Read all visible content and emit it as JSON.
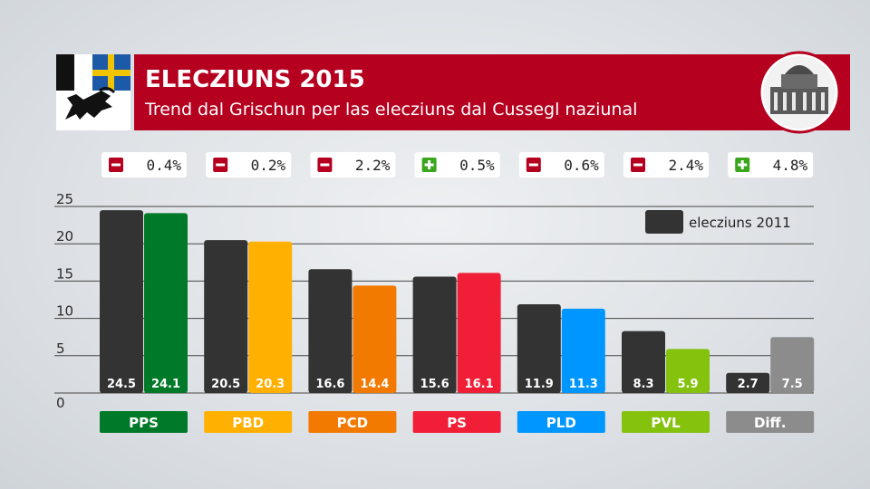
{
  "header": {
    "title": "ELECZIUNS 2015",
    "subtitle": "Trend dal Grischun per las elecziuns dal Cussegl naziunal"
  },
  "colors": {
    "header_red": "#b5001f",
    "previous": "#333333",
    "grid": "#444444"
  },
  "icons": {
    "logo": "graubuenden-coat-of-arms-icon",
    "photo": "federal-palace-icon",
    "minus": "minus-icon",
    "plus": "plus-icon"
  },
  "legend": {
    "label": "elecziuns 2011"
  },
  "chart_data": {
    "type": "bar",
    "title": "ELECZIUNS 2015",
    "subtitle": "Trend dal Grischun per las elecziuns dal Cussegl naziunal",
    "xlabel": "",
    "ylabel": "",
    "ylim": [
      0,
      25
    ],
    "yticks": [
      "0",
      "5",
      "10",
      "15",
      "20",
      "25"
    ],
    "grid": true,
    "legend_position": "top-right",
    "categories": [
      "PPS",
      "PBD",
      "PCD",
      "PS",
      "PLD",
      "PVL",
      "Diff."
    ],
    "category_colors": [
      "#007a28",
      "#ffb000",
      "#f27a00",
      "#f01f37",
      "#0096ff",
      "#84c20e",
      "#8c8c8c"
    ],
    "label_colors": [
      "#007a28",
      "#ffb000",
      "#f27a00",
      "#f01f37",
      "#0096ff",
      "#84c20e",
      "#8c8c8c"
    ],
    "series": [
      {
        "name": "elecziuns 2011",
        "values": [
          24.5,
          20.5,
          16.6,
          15.6,
          11.9,
          8.3,
          2.7
        ],
        "labels": [
          "24.5",
          "20.5",
          "16.6",
          "15.6",
          "11.9",
          "8.3",
          "2.7"
        ]
      },
      {
        "values": [
          24.1,
          20.3,
          14.4,
          16.1,
          11.3,
          5.9,
          7.5
        ],
        "labels": [
          "24.1",
          "20.3",
          "14.4",
          "16.1",
          "11.3",
          "5.9",
          "7.5"
        ]
      }
    ],
    "changes": [
      {
        "sign": "minus",
        "text": "0.4%"
      },
      {
        "sign": "minus",
        "text": "0.2%"
      },
      {
        "sign": "minus",
        "text": "2.2%"
      },
      {
        "sign": "plus",
        "text": "0.5%"
      },
      {
        "sign": "minus",
        "text": "0.6%"
      },
      {
        "sign": "minus",
        "text": "2.4%"
      },
      {
        "sign": "plus",
        "text": "4.8%"
      }
    ]
  }
}
